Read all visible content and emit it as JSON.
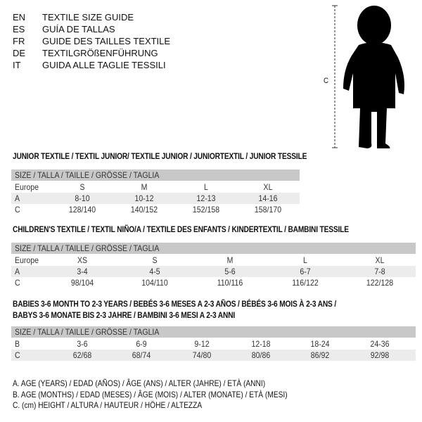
{
  "languages": [
    {
      "code": "EN",
      "name": "TEXTILE SIZE GUIDE"
    },
    {
      "code": "ES",
      "name": "GUÍA DE TALLAS"
    },
    {
      "code": "FR",
      "name": "GUIDE DES TAILLES TEXTILE"
    },
    {
      "code": "DE",
      "name": "TEXTILGRÖßENFÜHRUNG"
    },
    {
      "code": "IT",
      "name": "GUIDA ALLE TAGLIE TESSILI"
    }
  ],
  "figure": {
    "height_label": "C",
    "icon": "child-silhouette"
  },
  "size_header": "SIZE / TALLA / TAILLE / GRÖSSE / TAGLIA",
  "junior": {
    "title": "JUNIOR TEXTILE / TEXTIL JUNIOR/ TEXTILE JUNIOR / JUNIORTEXTIL / JUNIOR TESSILE",
    "rows": [
      {
        "label": "Europe",
        "cells": [
          "S",
          "M",
          "L",
          "XL"
        ]
      },
      {
        "label": "A",
        "cells": [
          "8-10",
          "10-12",
          "12-13",
          "14-16"
        ]
      },
      {
        "label": "C",
        "cells": [
          "128/140",
          "140/152",
          "152/158",
          "158/170"
        ]
      }
    ]
  },
  "children": {
    "title": "CHILDREN'S TEXTILE / TEXTIL NIÑO/A / TEXTILE DES ENFANTS / KINDERTEXTIL / BAMBINI TESSILE",
    "rows": [
      {
        "label": "Europe",
        "cells": [
          "XS",
          "S",
          "M",
          "L",
          "XL"
        ]
      },
      {
        "label": "A",
        "cells": [
          "3-4",
          "4-5",
          "5-6",
          "6-7",
          "7-8"
        ]
      },
      {
        "label": "C",
        "cells": [
          "98/104",
          "104/110",
          "110/116",
          "116/122",
          "122/128"
        ]
      }
    ]
  },
  "babies": {
    "title_line1": "BABIES 3-6 MONTH TO 2-3 YEARS / BEBÉS 3-6 MESES A 2-3 AÑOS / BÉBÉS 3-6 MOIS À 2-3 ANS /",
    "title_line2": "BABYS 3-6 MONATE BIS 2-3 JAHRE / BAMBINI 3-6 MESI A 2-3 ANNI",
    "rows": [
      {
        "label": "B",
        "cells": [
          "3-6",
          "6-9",
          "9-12",
          "12-18",
          "18-24",
          "24-36"
        ]
      },
      {
        "label": "C",
        "cells": [
          "62/68",
          "68/74",
          "74/80",
          "80/86",
          "86/92",
          "92/98"
        ]
      }
    ]
  },
  "legend": [
    "A. AGE (YEARS) / EDAD (AÑOS) / ÂGE (ANS) / ALTER (JAHRE) / ETÀ (ANNI)",
    "B. AGE (MONTHS) / EDAD (MESES) / ÂGE (MOIS) / ALTER (MONATE) / ETÀ (MESI)",
    "C. (cm) HEIGHT / ALTURA / HAUTEUR / HÖHE / ALTEZZA"
  ]
}
